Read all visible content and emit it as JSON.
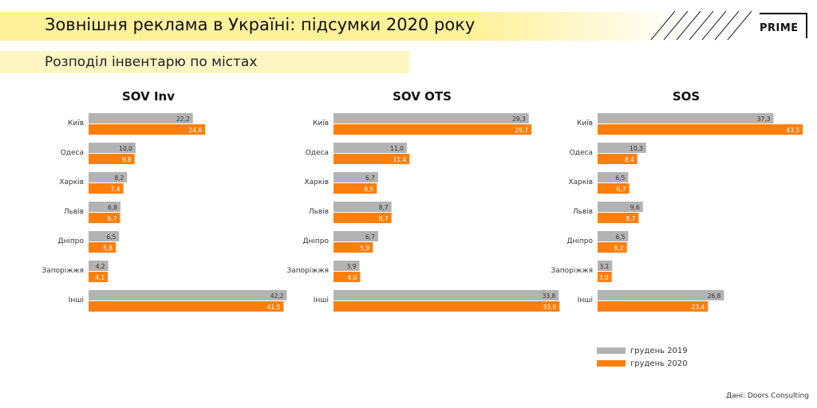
{
  "header": {
    "title": "Зовнішня реклама в Україні: підсумки 2020 року",
    "subtitle": "Розподіл інвентарю по містах",
    "logo": "PRIME"
  },
  "colors": {
    "series_2019": "#b3b3b3",
    "series_2020": "#ff7f0e",
    "accent_yellow": "#fdf19a"
  },
  "legend": {
    "items": [
      "грудень 2019",
      "грудень 2020"
    ]
  },
  "source": "Дані: Doors Consulting",
  "chart_data": [
    {
      "type": "bar",
      "orientation": "horizontal",
      "title": "SOV Inv",
      "categories": [
        "Київ",
        "Одеса",
        "Харків",
        "Львів",
        "Дніпро",
        "Запоріжжя",
        "Інші"
      ],
      "series": [
        {
          "name": "грудень 2019",
          "values": [
            22.2,
            10.0,
            8.2,
            6.8,
            6.5,
            4.2,
            42.2
          ],
          "labels": [
            "22,2",
            "10,0",
            "8,2",
            "6,8",
            "6,5",
            "4,2",
            "42,2"
          ]
        },
        {
          "name": "грудень 2020",
          "values": [
            24.8,
            9.8,
            7.4,
            6.7,
            5.8,
            4.1,
            41.5
          ],
          "labels": [
            "24,8",
            "9,8",
            "7,4",
            "6,7",
            "5,8",
            "4,1",
            "41,5"
          ]
        }
      ],
      "xlim": [
        0,
        45
      ]
    },
    {
      "type": "bar",
      "orientation": "horizontal",
      "title": "SOV OTS",
      "categories": [
        "Київ",
        "Одеса",
        "Харків",
        "Львів",
        "Дніпро",
        "Запоріжжя",
        "Інші"
      ],
      "series": [
        {
          "name": "грудень 2019",
          "values": [
            29.3,
            11.0,
            6.7,
            8.7,
            6.7,
            3.9,
            33.8
          ],
          "labels": [
            "29,3",
            "11,0",
            "6,7",
            "8,7",
            "6,7",
            "3,9",
            "33,8"
          ]
        },
        {
          "name": "грудень 2020",
          "values": [
            29.7,
            11.4,
            6.5,
            8.7,
            5.9,
            4.0,
            33.9
          ],
          "labels": [
            "29,7",
            "11,4",
            "6,5",
            "8,7",
            "5,9",
            "4,0",
            "33,9"
          ]
        }
      ],
      "xlim": [
        0,
        34
      ]
    },
    {
      "type": "bar",
      "orientation": "horizontal",
      "title": "SOS",
      "categories": [
        "Київ",
        "Одеса",
        "Харків",
        "Львів",
        "Дніпро",
        "Запоріжжя",
        "Інші"
      ],
      "series": [
        {
          "name": "грудень 2019",
          "values": [
            37.3,
            10.3,
            6.5,
            9.6,
            6.5,
            3.1,
            26.8
          ],
          "labels": [
            "37,3",
            "10,3",
            "6,5",
            "9,6",
            "6,5",
            "3,1",
            "26,8"
          ]
        },
        {
          "name": "грудень 2020",
          "values": [
            43.5,
            8.4,
            6.7,
            8.7,
            6.2,
            3.0,
            23.4
          ],
          "labels": [
            "43,5",
            "8,4",
            "6,7",
            "8,7",
            "6,2",
            "3,0",
            "23,4"
          ]
        }
      ],
      "xlim": [
        0,
        45
      ]
    }
  ]
}
